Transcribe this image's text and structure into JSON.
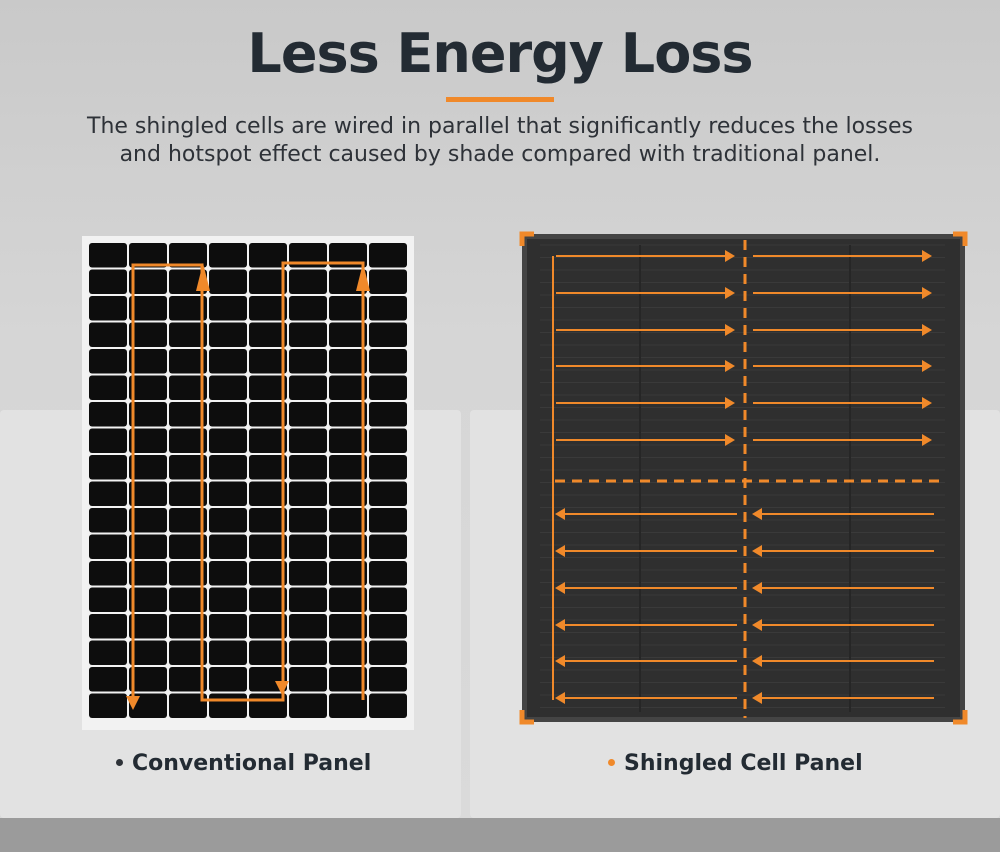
{
  "title": "Less Energy Loss",
  "subtitle_line1": "The shingled cells are wired in parallel that significantly reduces the losses",
  "subtitle_line2": "and hotspot effect caused by shade compared with traditional panel.",
  "panels": [
    {
      "label": "Conventional Panel",
      "bullet_color": "#2e3238"
    },
    {
      "label": "Shingled Cell Panel",
      "bullet_color": "#f0892a"
    }
  ],
  "colors": {
    "accent": "#f0892a",
    "cell": "#0d0d0d",
    "shingled_panel": "#2f2f2f"
  }
}
